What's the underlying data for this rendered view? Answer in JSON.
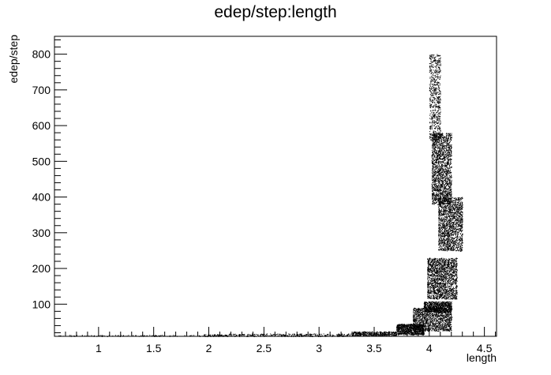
{
  "chart_data": {
    "type": "scatter",
    "title": "edep/step:length",
    "xlabel": "length",
    "ylabel": "edep/step",
    "xlim": [
      0.6,
      4.61
    ],
    "ylim": [
      10,
      850
    ],
    "xticks": [
      1,
      1.5,
      2,
      2.5,
      3,
      3.5,
      4,
      4.5
    ],
    "xtick_labels": [
      "1",
      "1.5",
      "2",
      "2.5",
      "3",
      "3.5",
      "4",
      "4.5"
    ],
    "yticks": [
      100,
      200,
      300,
      400,
      500,
      600,
      700,
      800
    ],
    "ytick_labels": [
      "100",
      "200",
      "300",
      "400",
      "500",
      "600",
      "700",
      "800"
    ],
    "grid": false,
    "marker": "dot",
    "marker_color": "#000000",
    "points": [
      [
        1.5,
        12
      ],
      [
        2.05,
        12
      ],
      [
        2.5,
        12
      ],
      [
        2.8,
        13
      ],
      [
        3.05,
        14
      ],
      [
        3.3,
        15
      ],
      [
        3.55,
        20
      ],
      [
        3.75,
        28
      ],
      [
        3.9,
        40
      ],
      [
        4.0,
        60
      ],
      [
        4.1,
        70
      ],
      [
        4.2,
        65
      ],
      [
        3.95,
        95
      ],
      [
        4.1,
        95
      ],
      [
        4.2,
        88
      ],
      [
        4.0,
        230
      ],
      [
        4.05,
        190
      ],
      [
        4.1,
        160
      ],
      [
        4.2,
        140
      ],
      [
        4.22,
        125
      ],
      [
        4.0,
        790
      ],
      [
        4.05,
        750
      ],
      [
        4.0,
        700
      ],
      [
        4.02,
        620
      ],
      [
        4.05,
        560
      ],
      [
        4.08,
        480
      ],
      [
        4.1,
        420
      ],
      [
        4.15,
        370
      ],
      [
        4.2,
        330
      ],
      [
        4.25,
        290
      ],
      [
        4.28,
        250
      ]
    ],
    "bands": [
      {
        "x": [
          0.62,
          1.95
        ],
        "y": [
          10,
          14
        ],
        "n": 120
      },
      {
        "x": [
          1.95,
          2.15
        ],
        "y": [
          10,
          16
        ],
        "n": 80
      },
      {
        "x": [
          2.15,
          3.3
        ],
        "y": [
          10,
          18
        ],
        "n": 350
      },
      {
        "x": [
          3.3,
          3.7
        ],
        "y": [
          12,
          24
        ],
        "n": 450
      },
      {
        "x": [
          3.7,
          3.95
        ],
        "y": [
          15,
          45
        ],
        "n": 900
      },
      {
        "x": [
          3.85,
          4.2
        ],
        "y": [
          25,
          90
        ],
        "n": 1400
      },
      {
        "x": [
          3.95,
          4.2
        ],
        "y": [
          78,
          108
        ],
        "n": 800
      },
      {
        "x": [
          3.98,
          4.25
        ],
        "y": [
          115,
          230
        ],
        "n": 1800
      },
      {
        "x": [
          4.0,
          4.1
        ],
        "y": [
          560,
          800
        ],
        "n": 700
      },
      {
        "x": [
          4.02,
          4.2
        ],
        "y": [
          380,
          580
        ],
        "n": 1900
      },
      {
        "x": [
          4.08,
          4.3
        ],
        "y": [
          250,
          400
        ],
        "n": 1700
      }
    ]
  }
}
